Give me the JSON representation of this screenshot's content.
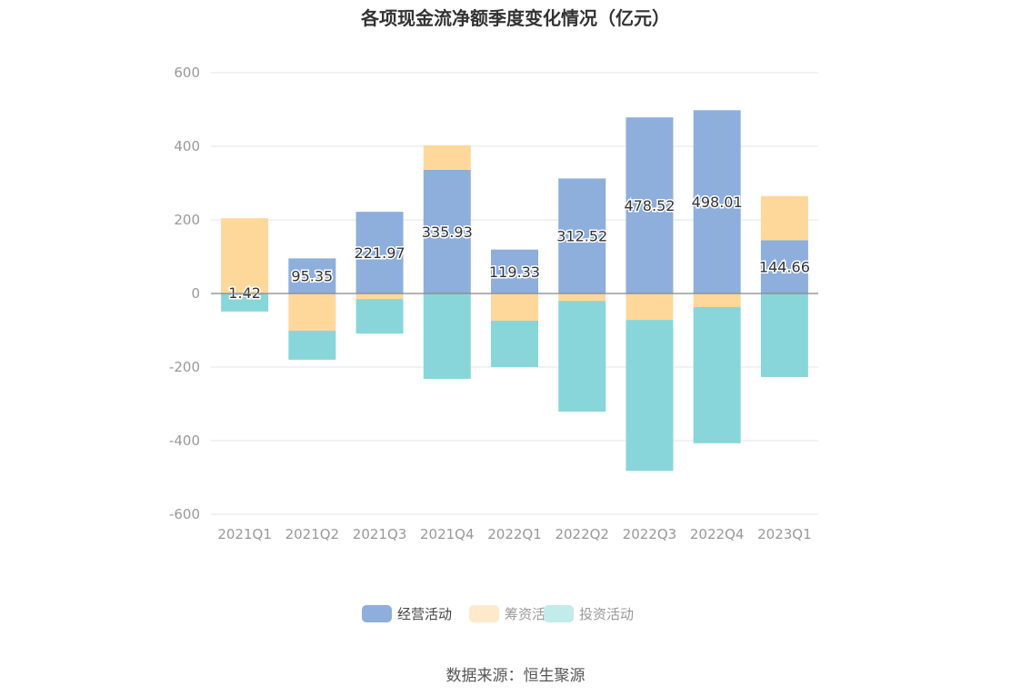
{
  "chart_data": {
    "type": "bar",
    "stacked": true,
    "title": "各项现金流净额季度变化情况（亿元）",
    "source": "数据来源：恒生聚源",
    "xlabel": "",
    "ylabel": "",
    "ylim": [
      -600,
      600
    ],
    "yticks": [
      600,
      400,
      200,
      0,
      -200,
      -400,
      -600
    ],
    "grid": true,
    "legend_position": "bottom",
    "categories": [
      "2021Q1",
      "2021Q2",
      "2021Q3",
      "2021Q4",
      "2022Q1",
      "2022Q2",
      "2022Q3",
      "2022Q4",
      "2023Q1"
    ],
    "series": [
      {
        "name": "经营活动",
        "color": "#8eaedc",
        "values": [
          1.42,
          95.35,
          221.97,
          335.93,
          119.33,
          312.52,
          478.52,
          498.01,
          144.66
        ],
        "labels": [
          "1.42",
          "95.35",
          "221.97",
          "335.93",
          "119.33",
          "312.52",
          "478.52",
          "498.01",
          "144.66"
        ]
      },
      {
        "name": "筹资活动",
        "color": "#fed89a",
        "values": [
          203,
          -101,
          -15,
          67,
          -74,
          -20,
          -72,
          -37,
          120
        ]
      },
      {
        "name": "投资活动",
        "color": "#88d6da",
        "values": [
          -49,
          -79,
          -94,
          -232,
          -126,
          -301,
          -410,
          -370,
          -227
        ]
      }
    ],
    "legend_colors": [
      "#8eaedc",
      "#feeacb",
      "#c2ebec"
    ],
    "legend_text_colors": [
      "#444444",
      "#999999",
      "#999999"
    ]
  }
}
